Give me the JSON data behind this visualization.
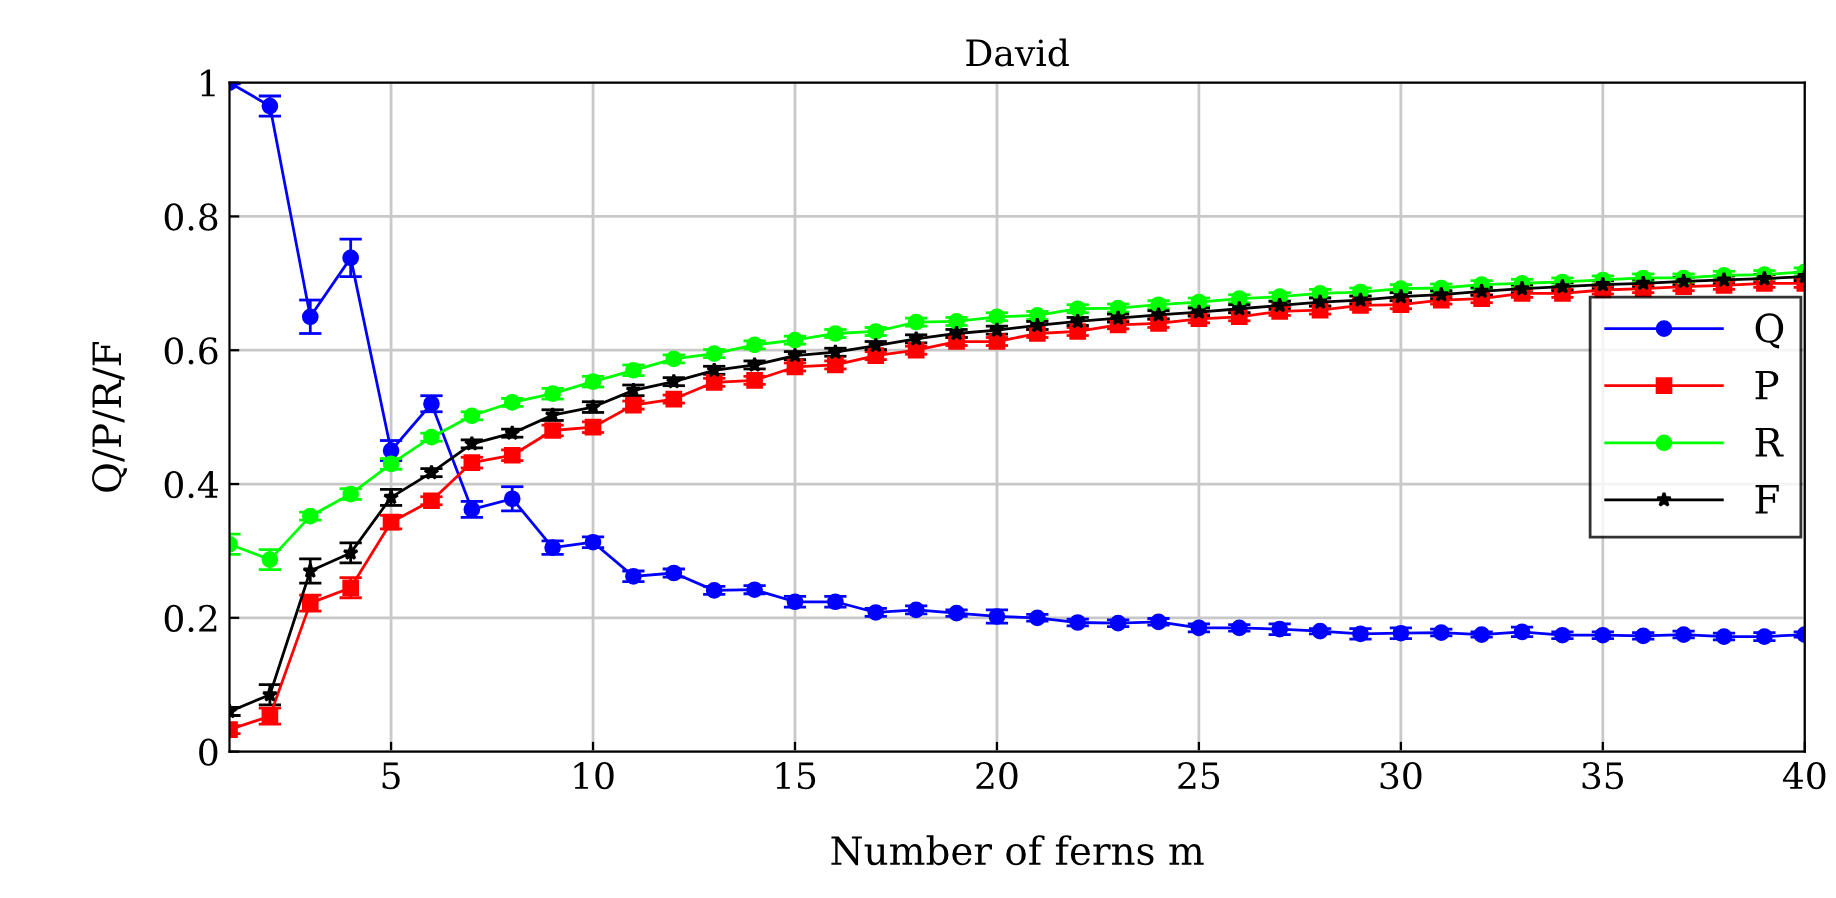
{
  "chart_data": {
    "type": "line",
    "title": "David",
    "xlabel": "Number of ferns m",
    "ylabel": "Q/P/R/F",
    "x": [
      1,
      2,
      3,
      4,
      5,
      6,
      7,
      8,
      9,
      10,
      11,
      12,
      13,
      14,
      15,
      16,
      17,
      18,
      19,
      20,
      21,
      22,
      23,
      24,
      25,
      26,
      27,
      28,
      29,
      30,
      31,
      32,
      33,
      34,
      35,
      36,
      37,
      38,
      39,
      40
    ],
    "xlim": [
      1,
      40
    ],
    "xticks": [
      5,
      10,
      15,
      20,
      25,
      30,
      35,
      40
    ],
    "ylim": [
      0,
      1
    ],
    "yticks": [
      0,
      0.2,
      0.4,
      0.6,
      0.8,
      1
    ],
    "grid": true,
    "legend": "right",
    "line_style": "solid",
    "series": [
      {
        "name": "Q",
        "color": "#0000ff",
        "marker": "circle",
        "values": [
          1.0,
          0.965,
          0.65,
          0.738,
          0.45,
          0.52,
          0.362,
          0.378,
          0.305,
          0.313,
          0.262,
          0.267,
          0.241,
          0.242,
          0.224,
          0.224,
          0.208,
          0.212,
          0.207,
          0.202,
          0.2,
          0.193,
          0.192,
          0.194,
          0.185,
          0.185,
          0.183,
          0.18,
          0.176,
          0.177,
          0.178,
          0.175,
          0.179,
          0.174,
          0.174,
          0.173,
          0.175,
          0.172,
          0.172,
          0.175
        ],
        "errors": [
          0.002,
          0.015,
          0.025,
          0.028,
          0.015,
          0.012,
          0.012,
          0.018,
          0.01,
          0.008,
          0.008,
          0.006,
          0.006,
          0.006,
          0.008,
          0.008,
          0.006,
          0.006,
          0.005,
          0.01,
          0.005,
          0.005,
          0.005,
          0.005,
          0.006,
          0.005,
          0.008,
          0.004,
          0.008,
          0.008,
          0.005,
          0.004,
          0.007,
          0.005,
          0.005,
          0.005,
          0.005,
          0.005,
          0.006,
          0.004
        ]
      },
      {
        "name": "P",
        "color": "#ff0000",
        "marker": "square",
        "values": [
          0.033,
          0.053,
          0.222,
          0.245,
          0.343,
          0.375,
          0.432,
          0.443,
          0.48,
          0.485,
          0.518,
          0.527,
          0.552,
          0.555,
          0.575,
          0.578,
          0.592,
          0.6,
          0.613,
          0.613,
          0.625,
          0.628,
          0.638,
          0.64,
          0.647,
          0.65,
          0.658,
          0.66,
          0.667,
          0.668,
          0.675,
          0.677,
          0.685,
          0.685,
          0.69,
          0.692,
          0.695,
          0.697,
          0.7,
          0.7
        ],
        "errors": [
          0.006,
          0.012,
          0.012,
          0.015,
          0.01,
          0.006,
          0.008,
          0.008,
          0.008,
          0.008,
          0.006,
          0.006,
          0.006,
          0.006,
          0.006,
          0.006,
          0.006,
          0.006,
          0.006,
          0.006,
          0.006,
          0.006,
          0.006,
          0.006,
          0.006,
          0.006,
          0.006,
          0.006,
          0.006,
          0.006,
          0.006,
          0.006,
          0.006,
          0.006,
          0.006,
          0.006,
          0.006,
          0.006,
          0.006,
          0.006
        ]
      },
      {
        "name": "R",
        "color": "#00ff00",
        "marker": "circle",
        "values": [
          0.31,
          0.287,
          0.352,
          0.385,
          0.43,
          0.47,
          0.502,
          0.522,
          0.535,
          0.553,
          0.57,
          0.587,
          0.595,
          0.608,
          0.615,
          0.625,
          0.628,
          0.642,
          0.643,
          0.65,
          0.652,
          0.662,
          0.663,
          0.668,
          0.672,
          0.677,
          0.68,
          0.685,
          0.687,
          0.692,
          0.693,
          0.698,
          0.7,
          0.702,
          0.705,
          0.708,
          0.708,
          0.712,
          0.713,
          0.717
        ],
        "errors": [
          0.015,
          0.015,
          0.006,
          0.008,
          0.008,
          0.006,
          0.006,
          0.006,
          0.008,
          0.008,
          0.008,
          0.006,
          0.006,
          0.006,
          0.006,
          0.006,
          0.006,
          0.006,
          0.006,
          0.006,
          0.006,
          0.006,
          0.006,
          0.006,
          0.006,
          0.006,
          0.006,
          0.006,
          0.006,
          0.006,
          0.006,
          0.006,
          0.006,
          0.006,
          0.006,
          0.006,
          0.006,
          0.006,
          0.006,
          0.006
        ]
      },
      {
        "name": "F",
        "color": "#000000",
        "marker": "star",
        "values": [
          0.06,
          0.085,
          0.27,
          0.297,
          0.38,
          0.417,
          0.46,
          0.476,
          0.503,
          0.515,
          0.54,
          0.553,
          0.57,
          0.578,
          0.592,
          0.597,
          0.607,
          0.617,
          0.625,
          0.63,
          0.637,
          0.643,
          0.648,
          0.653,
          0.657,
          0.662,
          0.667,
          0.672,
          0.675,
          0.68,
          0.683,
          0.688,
          0.692,
          0.695,
          0.698,
          0.7,
          0.703,
          0.705,
          0.707,
          0.71
        ],
        "errors": [
          0.006,
          0.015,
          0.018,
          0.015,
          0.012,
          0.006,
          0.006,
          0.006,
          0.008,
          0.008,
          0.008,
          0.006,
          0.006,
          0.006,
          0.006,
          0.006,
          0.006,
          0.006,
          0.006,
          0.006,
          0.006,
          0.006,
          0.006,
          0.006,
          0.006,
          0.006,
          0.006,
          0.006,
          0.006,
          0.006,
          0.006,
          0.006,
          0.006,
          0.006,
          0.006,
          0.006,
          0.006,
          0.006,
          0.006,
          0.006
        ]
      }
    ]
  }
}
